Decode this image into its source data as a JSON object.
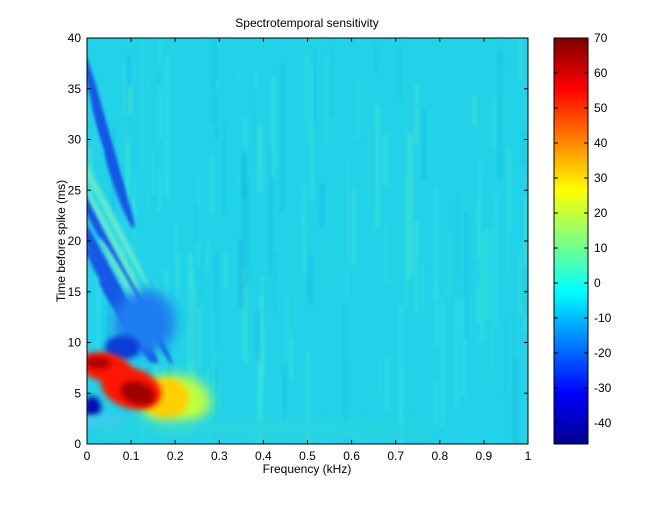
{
  "chart_data": {
    "type": "heatmap",
    "title": "Spectrotemporal sensitivity",
    "xlabel": "Frequency (kHz)",
    "ylabel": "Time before spike (ms)",
    "xlim": [
      0,
      1
    ],
    "ylim": [
      0,
      40
    ],
    "x_ticks": [
      "0",
      "0.1",
      "0.2",
      "0.3",
      "0.4",
      "0.5",
      "0.6",
      "0.7",
      "0.8",
      "0.9",
      "1"
    ],
    "y_ticks": [
      "0",
      "5",
      "10",
      "15",
      "20",
      "25",
      "30",
      "35",
      "40"
    ],
    "colorbar": {
      "range": [
        -46,
        70
      ],
      "ticks": [
        "70",
        "60",
        "50",
        "40",
        "30",
        "20",
        "10",
        "0",
        "-10",
        "-20",
        "-30",
        "-40"
      ],
      "colormap": "jet"
    },
    "grid": false,
    "features": [
      {
        "desc": "strong positive peak",
        "freq_khz": 0.11,
        "time_ms": 5,
        "value": 68
      },
      {
        "desc": "positive band",
        "freq_khz": 0.02,
        "time_ms": 7.5,
        "value": 62
      },
      {
        "desc": "negative region",
        "freq_khz": 0.01,
        "time_ms": 3.5,
        "value": -42
      },
      {
        "desc": "negative oblique stripes",
        "freq_khz": 0.06,
        "time_ms": 18,
        "value": -25
      }
    ]
  }
}
